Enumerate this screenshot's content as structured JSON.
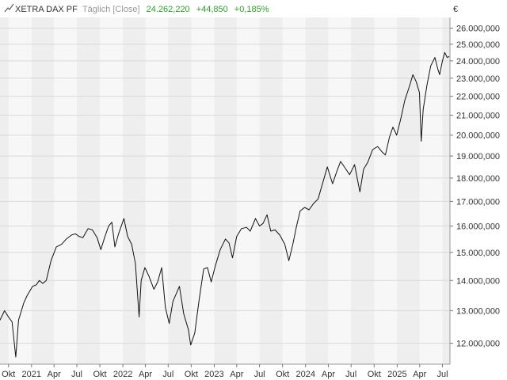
{
  "header": {
    "name": "XETRA DAX PF",
    "interval": "Täglich [Close]",
    "last": "24.262,220",
    "change": "+44,850",
    "change_pct": "+0,185%",
    "currency": "€"
  },
  "colors": {
    "line": "#111111",
    "band_a": "#eeeeee",
    "band_b": "#f7f7f7",
    "grid": "#d9d9d9",
    "header_name": "#333333",
    "header_muted": "#999999",
    "positive": "#2ea02e"
  },
  "chart_data": {
    "type": "line",
    "title": "XETRA DAX PF",
    "xlabel": "",
    "ylabel": "",
    "y_scale": "log",
    "ylim": [
      11400000,
      26700000
    ],
    "xlim": [
      "2020-08-28",
      "2025-07-31"
    ],
    "grid": true,
    "x_ticks": [
      {
        "date": "2020-10-01",
        "label": "Okt"
      },
      {
        "date": "2021-01-01",
        "label": "2021"
      },
      {
        "date": "2021-04-01",
        "label": "Apr"
      },
      {
        "date": "2021-07-01",
        "label": "Jul"
      },
      {
        "date": "2021-10-01",
        "label": "Okt"
      },
      {
        "date": "2022-01-01",
        "label": "2022"
      },
      {
        "date": "2022-04-01",
        "label": "Apr"
      },
      {
        "date": "2022-07-01",
        "label": "Jul"
      },
      {
        "date": "2022-10-01",
        "label": "Okt"
      },
      {
        "date": "2023-01-01",
        "label": "2023"
      },
      {
        "date": "2023-04-01",
        "label": "Apr"
      },
      {
        "date": "2023-07-01",
        "label": "Jul"
      },
      {
        "date": "2023-10-01",
        "label": "Okt"
      },
      {
        "date": "2024-01-01",
        "label": "2024"
      },
      {
        "date": "2024-04-01",
        "label": "Apr"
      },
      {
        "date": "2024-07-01",
        "label": "Jul"
      },
      {
        "date": "2024-10-01",
        "label": "Okt"
      },
      {
        "date": "2025-01-01",
        "label": "2025"
      },
      {
        "date": "2025-04-01",
        "label": "Apr"
      },
      {
        "date": "2025-07-01",
        "label": "Jul"
      }
    ],
    "y_ticks": [
      {
        "value": 12000000,
        "label": "12.000,000"
      },
      {
        "value": 13000000,
        "label": "13.000,000"
      },
      {
        "value": 14000000,
        "label": "14.000,000"
      },
      {
        "value": 15000000,
        "label": "15.000,000"
      },
      {
        "value": 16000000,
        "label": "16.000,000"
      },
      {
        "value": 17000000,
        "label": "17.000,000"
      },
      {
        "value": 18000000,
        "label": "18.000,000"
      },
      {
        "value": 19000000,
        "label": "19.000,000"
      },
      {
        "value": 20000000,
        "label": "20.000,000"
      },
      {
        "value": 21000000,
        "label": "21.000,000"
      },
      {
        "value": 22000000,
        "label": "22.000,000"
      },
      {
        "value": 23000000,
        "label": "23.000,000"
      },
      {
        "value": 24000000,
        "label": "24.000,000"
      },
      {
        "value": 25000000,
        "label": "25.000,000"
      },
      {
        "value": 26000000,
        "label": "26.000,000"
      }
    ],
    "series": [
      {
        "values": [
          [
            "2020-08-28",
            12700000
          ],
          [
            "2020-09-15",
            13000000
          ],
          [
            "2020-10-01",
            12800000
          ],
          [
            "2020-10-15",
            12650000
          ],
          [
            "2020-10-30",
            11600000
          ],
          [
            "2020-11-10",
            12700000
          ],
          [
            "2020-12-01",
            13250000
          ],
          [
            "2020-12-15",
            13500000
          ],
          [
            "2021-01-05",
            13800000
          ],
          [
            "2021-01-20",
            13850000
          ],
          [
            "2021-02-01",
            14000000
          ],
          [
            "2021-02-15",
            13900000
          ],
          [
            "2021-03-01",
            14000000
          ],
          [
            "2021-03-20",
            14700000
          ],
          [
            "2021-04-10",
            15200000
          ],
          [
            "2021-05-01",
            15300000
          ],
          [
            "2021-05-20",
            15500000
          ],
          [
            "2021-06-10",
            15650000
          ],
          [
            "2021-06-25",
            15700000
          ],
          [
            "2021-07-10",
            15600000
          ],
          [
            "2021-07-25",
            15550000
          ],
          [
            "2021-08-15",
            15900000
          ],
          [
            "2021-09-01",
            15850000
          ],
          [
            "2021-09-20",
            15550000
          ],
          [
            "2021-10-05",
            15100000
          ],
          [
            "2021-10-20",
            15550000
          ],
          [
            "2021-11-05",
            16000000
          ],
          [
            "2021-11-18",
            16150000
          ],
          [
            "2021-11-30",
            15200000
          ],
          [
            "2021-12-15",
            15700000
          ],
          [
            "2022-01-05",
            16300000
          ],
          [
            "2022-01-20",
            15600000
          ],
          [
            "2022-02-05",
            15300000
          ],
          [
            "2022-02-20",
            14600000
          ],
          [
            "2022-03-07",
            12800000
          ],
          [
            "2022-03-15",
            14000000
          ],
          [
            "2022-03-30",
            14450000
          ],
          [
            "2022-04-15",
            14150000
          ],
          [
            "2022-05-05",
            13700000
          ],
          [
            "2022-05-20",
            13950000
          ],
          [
            "2022-06-05",
            14450000
          ],
          [
            "2022-06-20",
            13100000
          ],
          [
            "2022-07-05",
            12600000
          ],
          [
            "2022-07-20",
            13300000
          ],
          [
            "2022-08-15",
            13800000
          ],
          [
            "2022-09-01",
            12900000
          ],
          [
            "2022-09-20",
            12400000
          ],
          [
            "2022-09-29",
            11950000
          ],
          [
            "2022-10-15",
            12300000
          ],
          [
            "2022-11-01",
            13300000
          ],
          [
            "2022-11-20",
            14400000
          ],
          [
            "2022-12-05",
            14450000
          ],
          [
            "2022-12-20",
            13950000
          ],
          [
            "2023-01-05",
            14500000
          ],
          [
            "2023-01-25",
            15100000
          ],
          [
            "2023-02-15",
            15500000
          ],
          [
            "2023-03-01",
            15350000
          ],
          [
            "2023-03-15",
            14800000
          ],
          [
            "2023-04-01",
            15600000
          ],
          [
            "2023-04-20",
            15900000
          ],
          [
            "2023-05-10",
            15950000
          ],
          [
            "2023-05-25",
            15800000
          ],
          [
            "2023-06-15",
            16300000
          ],
          [
            "2023-07-01",
            16000000
          ],
          [
            "2023-07-15",
            16100000
          ],
          [
            "2023-07-31",
            16450000
          ],
          [
            "2023-08-15",
            15800000
          ],
          [
            "2023-09-01",
            15850000
          ],
          [
            "2023-09-20",
            15650000
          ],
          [
            "2023-10-10",
            15300000
          ],
          [
            "2023-10-26",
            14700000
          ],
          [
            "2023-11-10",
            15250000
          ],
          [
            "2023-11-25",
            15950000
          ],
          [
            "2023-12-10",
            16600000
          ],
          [
            "2023-12-28",
            16750000
          ],
          [
            "2024-01-15",
            16650000
          ],
          [
            "2024-02-01",
            16900000
          ],
          [
            "2024-02-20",
            17100000
          ],
          [
            "2024-03-10",
            17800000
          ],
          [
            "2024-03-28",
            18500000
          ],
          [
            "2024-04-18",
            17750000
          ],
          [
            "2024-05-05",
            18300000
          ],
          [
            "2024-05-20",
            18750000
          ],
          [
            "2024-06-10",
            18400000
          ],
          [
            "2024-06-25",
            18150000
          ],
          [
            "2024-07-15",
            18600000
          ],
          [
            "2024-08-05",
            17400000
          ],
          [
            "2024-08-20",
            18400000
          ],
          [
            "2024-09-05",
            18700000
          ],
          [
            "2024-09-25",
            19300000
          ],
          [
            "2024-10-15",
            19450000
          ],
          [
            "2024-11-01",
            19200000
          ],
          [
            "2024-11-15",
            19050000
          ],
          [
            "2024-12-01",
            19900000
          ],
          [
            "2024-12-15",
            20400000
          ],
          [
            "2024-12-30",
            20000000
          ],
          [
            "2025-01-15",
            20800000
          ],
          [
            "2025-02-01",
            21800000
          ],
          [
            "2025-02-18",
            22500000
          ],
          [
            "2025-03-05",
            23200000
          ],
          [
            "2025-03-18",
            22800000
          ],
          [
            "2025-03-31",
            22200000
          ],
          [
            "2025-04-07",
            19700000
          ],
          [
            "2025-04-15",
            21300000
          ],
          [
            "2025-04-30",
            22600000
          ],
          [
            "2025-05-15",
            23700000
          ],
          [
            "2025-06-01",
            24200000
          ],
          [
            "2025-06-13",
            23500000
          ],
          [
            "2025-06-20",
            23200000
          ],
          [
            "2025-07-01",
            24000000
          ],
          [
            "2025-07-10",
            24500000
          ],
          [
            "2025-07-20",
            24200000
          ],
          [
            "2025-07-28",
            24262220
          ]
        ]
      }
    ]
  }
}
